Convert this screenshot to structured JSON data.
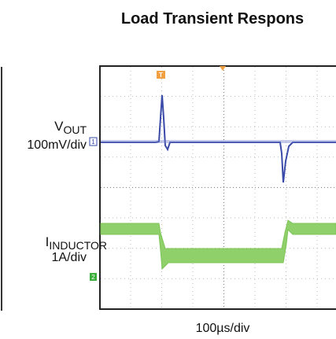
{
  "header": {
    "title": "Load Transient Respons"
  },
  "channels": [
    {
      "symbol": "V",
      "subscript": "OUT",
      "scale": "100mV/div",
      "marker": "1"
    },
    {
      "symbol": "I",
      "subscript": "INDUCTOR",
      "scale": "1A/div",
      "marker": "2"
    }
  ],
  "timebase": "100µs/div",
  "trigger_marker": "T"
}
